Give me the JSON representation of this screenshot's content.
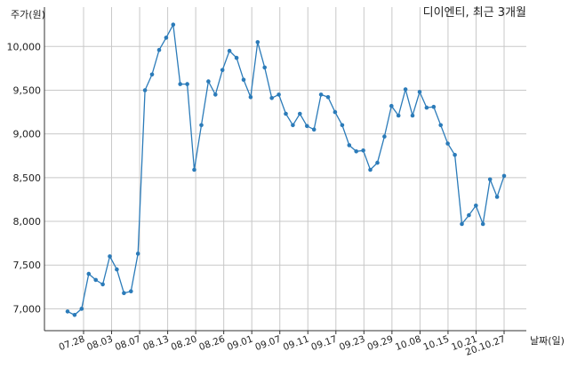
{
  "chart_data": {
    "type": "line",
    "title": "디이엔티, 최근 3개월",
    "ylabel": "주가(원)",
    "xlabel": "날짜(일)",
    "ylim": [
      6750,
      10450
    ],
    "yticks": [
      7000,
      7500,
      8000,
      8500,
      9000,
      9500,
      10000
    ],
    "ytick_labels": [
      "7,000",
      "7,500",
      "8,000",
      "8,500",
      "9,000",
      "9,500",
      "10,000"
    ],
    "xtick_labels": [
      "07.28",
      "08.03",
      "08.07",
      "08.13",
      "08.20",
      "08.26",
      "09.01",
      "09.07",
      "09.11",
      "09.17",
      "09.23",
      "09.29",
      "10.08",
      "10.15",
      "10.21",
      "20.10.27"
    ],
    "grid": true,
    "line_color": "#2b7bb9",
    "series": [
      {
        "values": [
          6970,
          6930,
          7000,
          7400,
          7330,
          7280,
          7600,
          7450,
          7180,
          7200,
          7630,
          9500,
          9680,
          9960,
          10100,
          10250,
          9570,
          9570,
          8590,
          9100,
          9600,
          9450,
          9730,
          9950,
          9870,
          9620,
          9420,
          10050,
          9760,
          9410,
          9450,
          9230,
          9100,
          9230,
          9090,
          9050,
          9450,
          9420,
          9250,
          9100,
          8870,
          8800,
          8810,
          8590,
          8670,
          8970,
          9320,
          9210,
          9510,
          9210,
          9480,
          9300,
          9310,
          9100,
          8890,
          8760,
          7970,
          8070,
          8180,
          7970,
          8480,
          8280,
          8520
        ]
      }
    ]
  }
}
